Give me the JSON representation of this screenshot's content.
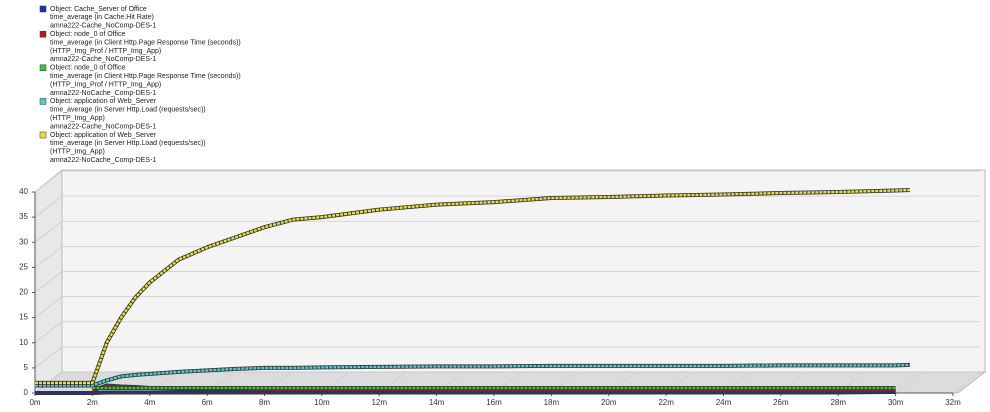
{
  "chart_data": {
    "type": "line",
    "x": [
      0,
      1,
      2,
      2.5,
      3,
      3.5,
      4,
      5,
      6,
      7,
      8,
      9,
      10,
      12,
      14,
      16,
      18,
      20,
      22,
      24,
      26,
      28,
      30,
      30.5
    ],
    "xlim": [
      0,
      32
    ],
    "xticks": [
      {
        "value": 0,
        "label": "0m"
      },
      {
        "value": 2,
        "label": "2m"
      },
      {
        "value": 4,
        "label": "4m"
      },
      {
        "value": 6,
        "label": "6m"
      },
      {
        "value": 8,
        "label": "8m"
      },
      {
        "value": 10,
        "label": "10m"
      },
      {
        "value": 12,
        "label": "12m"
      },
      {
        "value": 14,
        "label": "14m"
      },
      {
        "value": 16,
        "label": "16m"
      },
      {
        "value": 18,
        "label": "18m"
      },
      {
        "value": 20,
        "label": "20m"
      },
      {
        "value": 22,
        "label": "22m"
      },
      {
        "value": 24,
        "label": "24m"
      },
      {
        "value": 26,
        "label": "26m"
      },
      {
        "value": 28,
        "label": "28m"
      },
      {
        "value": 30,
        "label": "30m"
      },
      {
        "value": 32,
        "label": "32m"
      }
    ],
    "ylim": [
      0,
      40
    ],
    "yticks": [
      0,
      5,
      10,
      15,
      20,
      25,
      30,
      35,
      40
    ],
    "grid": true,
    "series": [
      {
        "name": "Object: Cache_Server of Office",
        "color": "#1c2fb0",
        "details": [
          "time_average (in Cache.Hit Rate)",
          "amna222-Cache_NoComp-DES-1"
        ],
        "values": [
          0,
          0,
          0,
          0.1,
          0.1,
          0.1,
          0.1,
          0.1,
          0.1,
          0.1,
          0.1,
          0.1,
          0.1,
          0.1,
          0.1,
          0.1,
          0.1,
          0.1,
          0.1,
          0.1,
          0.1,
          0.1,
          0.2,
          null
        ]
      },
      {
        "name": "Object: node_0 of Office",
        "color": "#b01c1c",
        "details": [
          "time_average (in Client Http.Page Response Time (seconds))",
          "(HTTP_Img_Prof / HTTP_Img_App)",
          "amna222-Cache_NoComp-DES-1"
        ],
        "values": [
          null,
          null,
          0.5,
          1.5,
          1.3,
          1.2,
          1,
          0.9,
          0.8,
          0.8,
          0.7,
          0.7,
          0.7,
          0.7,
          0.6,
          0.6,
          0.6,
          0.6,
          0.6,
          0.6,
          0.6,
          0.6,
          0.6,
          null
        ]
      },
      {
        "name": "Object: node_0 of Office",
        "color": "#3cc23c",
        "details": [
          "time_average (in Client Http.Page Response Time (seconds))",
          "(HTTP_Img_Prof / HTTP_Img_App)",
          "amna222-NoCache_Comp-DES-1"
        ],
        "values": [
          null,
          null,
          1,
          1,
          1,
          1,
          1,
          1,
          1,
          1,
          1,
          1,
          1,
          1,
          1,
          1,
          1,
          1,
          1,
          1,
          1,
          1,
          1,
          null
        ]
      },
      {
        "name": "Object: application of Web_Server",
        "color": "#4fd0d0",
        "details": [
          "time_average (in Server Http.Load (requests/sec))",
          "(HTTP_Img_App)",
          "amna222-Cache_NoComp-DES-1"
        ],
        "values": [
          1.5,
          1.5,
          1.5,
          2.5,
          3.3,
          3.6,
          3.8,
          4.2,
          4.5,
          4.8,
          5,
          5,
          5.1,
          5.2,
          5.3,
          5.3,
          5.4,
          5.4,
          5.4,
          5.4,
          5.5,
          5.5,
          5.5,
          5.6
        ]
      },
      {
        "name": "Object: application of Web_Server",
        "color": "#e6e23a",
        "details": [
          "time_average (in Server Http.Load (requests/sec))",
          "(HTTP_Img_App)",
          "amna222-NoCache_Comp-DES-1"
        ],
        "values": [
          2,
          2,
          2,
          10,
          15,
          19,
          22,
          26.5,
          29,
          31,
          33,
          34.5,
          35,
          36.5,
          37.5,
          38,
          38.8,
          39,
          39.3,
          39.5,
          39.8,
          40,
          40.3,
          40.4
        ]
      }
    ]
  }
}
